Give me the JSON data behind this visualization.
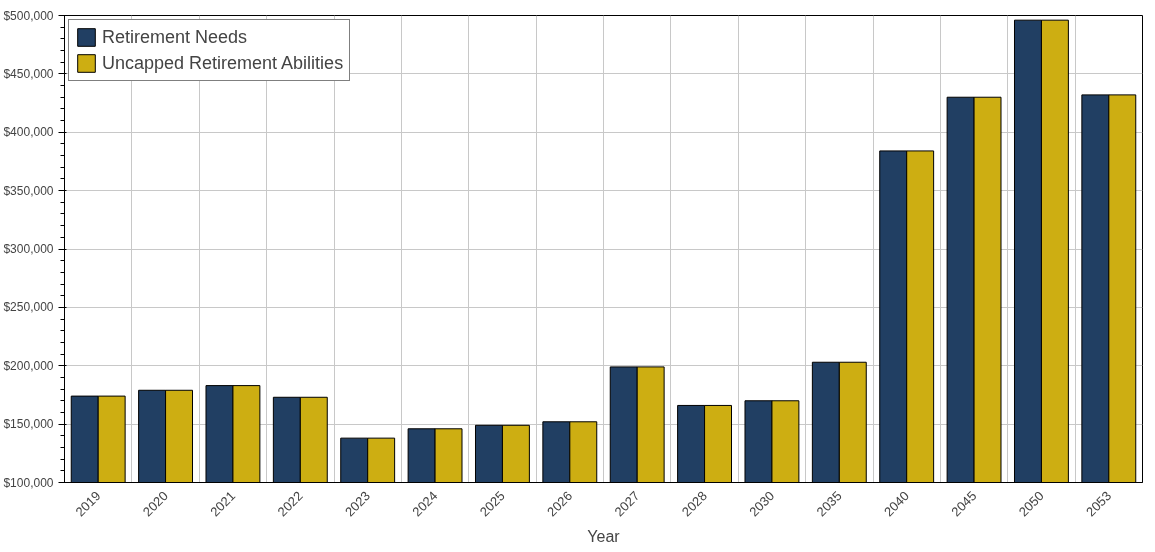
{
  "chart_data": {
    "type": "bar",
    "xlabel": "Year",
    "categories": [
      "2019",
      "2020",
      "2021",
      "2022",
      "2023",
      "2024",
      "2025",
      "2026",
      "2027",
      "2028",
      "2030",
      "2035",
      "2040",
      "2045",
      "2050",
      "2053"
    ],
    "series": [
      {
        "name": "Retirement Needs",
        "color": "#213f63",
        "values": [
          174000,
          179000,
          183000,
          173000,
          138000,
          146000,
          149000,
          152000,
          199000,
          166000,
          170000,
          203000,
          384000,
          430000,
          496000,
          432000
        ]
      },
      {
        "name": "Uncapped Retirement Abilities",
        "color": "#cdae12",
        "values": [
          174000,
          179000,
          183000,
          173000,
          138000,
          146000,
          149000,
          152000,
          199000,
          166000,
          170000,
          203000,
          384000,
          430000,
          496000,
          432000
        ]
      }
    ],
    "ylim": [
      100000,
      500000
    ],
    "yticks": [
      {
        "value": 100000,
        "label": "$100,000"
      },
      {
        "value": 150000,
        "label": "$150,000"
      },
      {
        "value": 200000,
        "label": "$200,000"
      },
      {
        "value": 250000,
        "label": "$250,000"
      },
      {
        "value": 300000,
        "label": "$300,000"
      },
      {
        "value": 350000,
        "label": "$350,000"
      },
      {
        "value": 400000,
        "label": "$400,000"
      },
      {
        "value": 450000,
        "label": "$450,000"
      },
      {
        "value": 500000,
        "label": "$500,000"
      }
    ],
    "grid": true,
    "legend": "top left"
  }
}
